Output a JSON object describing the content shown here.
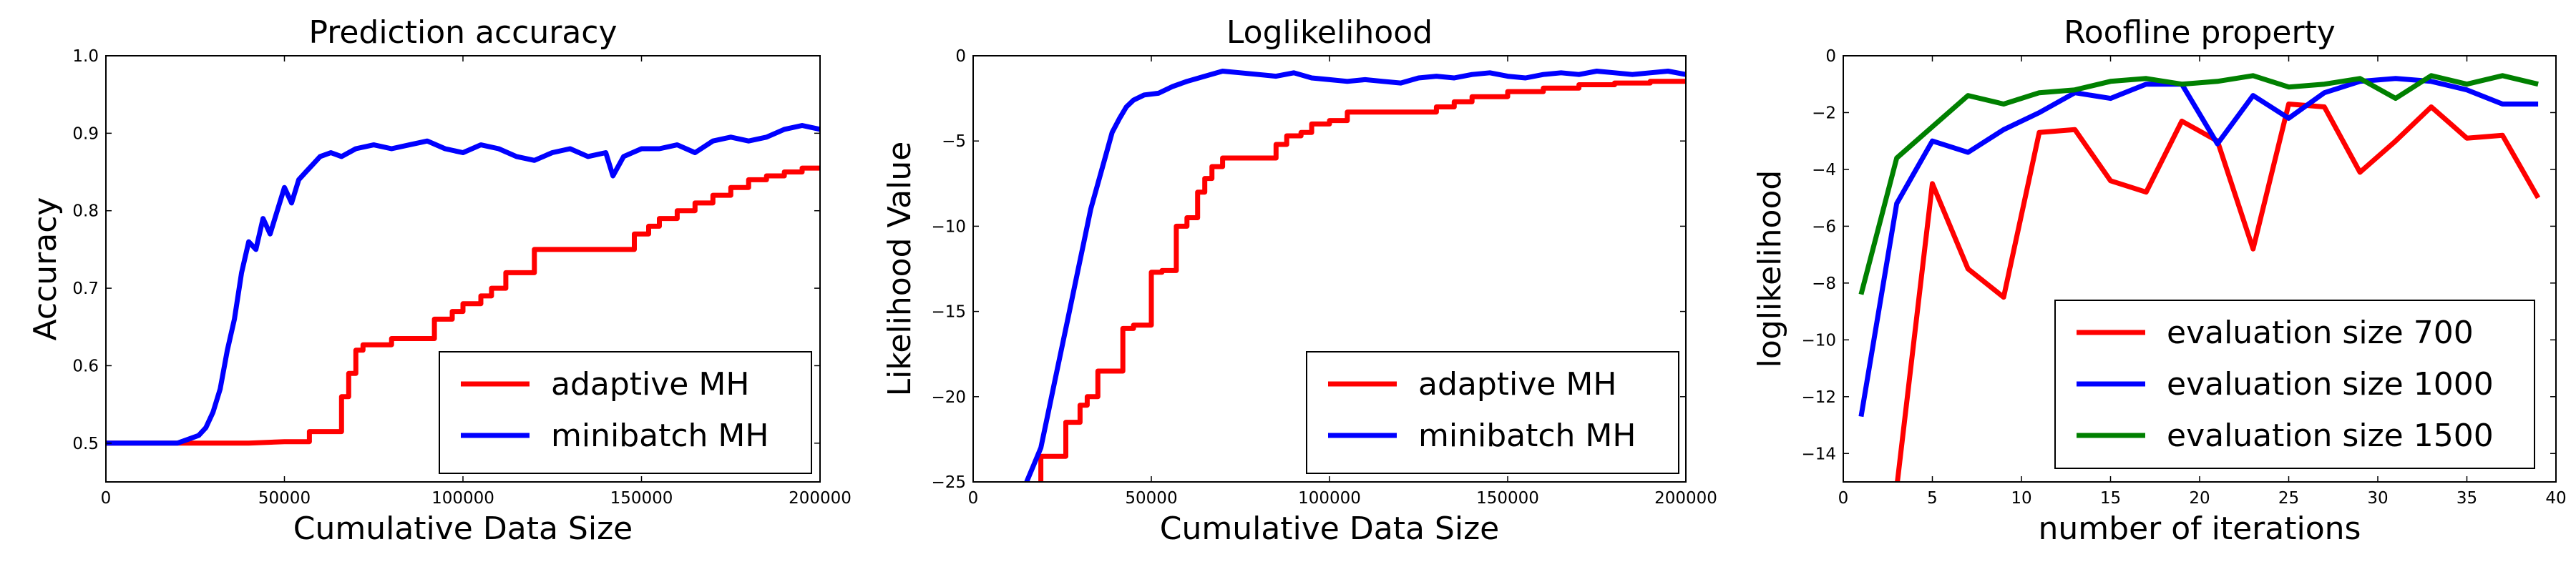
{
  "chart_data": [
    {
      "type": "line",
      "title": "Prediction accuracy",
      "xlabel": "Cumulative Data Size",
      "ylabel": "Accuracy",
      "xlim": [
        0,
        200000
      ],
      "ylim": [
        0.45,
        1.0
      ],
      "xticks": [
        0,
        50000,
        100000,
        150000,
        200000
      ],
      "xtick_labels": [
        "0",
        "50000",
        "100000",
        "150000",
        "200000"
      ],
      "yticks": [
        0.5,
        0.6,
        0.7,
        0.8,
        0.9,
        1.0
      ],
      "ytick_labels": [
        "0.5",
        "0.6",
        "0.7",
        "0.8",
        "0.9",
        "1.0"
      ],
      "legend_position": "lower-right",
      "series": [
        {
          "name": "adaptive MH",
          "color": "#ff0000",
          "x": [
            0,
            40000,
            50000,
            57000,
            57000,
            66000,
            66000,
            68000,
            68000,
            70000,
            70000,
            72000,
            72000,
            80000,
            80000,
            92000,
            92000,
            97000,
            97000,
            100000,
            100000,
            105000,
            105000,
            108000,
            108000,
            112000,
            112000,
            120000,
            120000,
            133000,
            133000,
            148000,
            148000,
            152000,
            152000,
            155000,
            155000,
            160000,
            160000,
            165000,
            165000,
            170000,
            170000,
            175000,
            175000,
            180000,
            180000,
            185000,
            185000,
            190000,
            190000,
            195000,
            195000,
            200000
          ],
          "y": [
            0.5,
            0.5,
            0.502,
            0.502,
            0.515,
            0.515,
            0.56,
            0.56,
            0.59,
            0.59,
            0.62,
            0.62,
            0.627,
            0.627,
            0.635,
            0.635,
            0.66,
            0.66,
            0.67,
            0.67,
            0.68,
            0.68,
            0.69,
            0.69,
            0.7,
            0.7,
            0.72,
            0.72,
            0.75,
            0.75,
            0.75,
            0.75,
            0.77,
            0.77,
            0.78,
            0.78,
            0.79,
            0.79,
            0.8,
            0.8,
            0.81,
            0.81,
            0.82,
            0.82,
            0.83,
            0.83,
            0.84,
            0.84,
            0.845,
            0.845,
            0.85,
            0.85,
            0.855,
            0.855
          ]
        },
        {
          "name": "minibatch MH",
          "color": "#0000ff",
          "x": [
            0,
            20000,
            23000,
            26000,
            28000,
            30000,
            32000,
            34000,
            36000,
            38000,
            40000,
            42000,
            44000,
            46000,
            48000,
            50000,
            52000,
            54000,
            56000,
            58000,
            60000,
            63000,
            66000,
            70000,
            75000,
            80000,
            85000,
            90000,
            95000,
            100000,
            105000,
            110000,
            115000,
            120000,
            125000,
            130000,
            135000,
            140000,
            142000,
            145000,
            150000,
            155000,
            160000,
            165000,
            170000,
            175000,
            180000,
            185000,
            190000,
            195000,
            200000
          ],
          "y": [
            0.5,
            0.5,
            0.505,
            0.51,
            0.52,
            0.54,
            0.57,
            0.62,
            0.66,
            0.72,
            0.76,
            0.75,
            0.79,
            0.77,
            0.8,
            0.83,
            0.81,
            0.84,
            0.85,
            0.86,
            0.87,
            0.875,
            0.87,
            0.88,
            0.885,
            0.88,
            0.885,
            0.89,
            0.88,
            0.875,
            0.885,
            0.88,
            0.87,
            0.865,
            0.875,
            0.88,
            0.87,
            0.875,
            0.845,
            0.87,
            0.88,
            0.88,
            0.885,
            0.875,
            0.89,
            0.895,
            0.89,
            0.895,
            0.905,
            0.91,
            0.905
          ]
        }
      ]
    },
    {
      "type": "line",
      "title": "Loglikelihood",
      "xlabel": "Cumulative Data Size",
      "ylabel": "Likelihood Value",
      "xlim": [
        0,
        200000
      ],
      "ylim": [
        -25,
        0
      ],
      "xticks": [
        0,
        50000,
        100000,
        150000,
        200000
      ],
      "xtick_labels": [
        "0",
        "50000",
        "100000",
        "150000",
        "200000"
      ],
      "yticks": [
        -25,
        -20,
        -15,
        -10,
        -5,
        0
      ],
      "ytick_labels": [
        "−25",
        "−20",
        "−15",
        "−10",
        "−5",
        "0"
      ],
      "legend_position": "lower-right",
      "series": [
        {
          "name": "adaptive MH",
          "color": "#ff0000",
          "x": [
            19000,
            19000,
            26000,
            26000,
            30000,
            30000,
            32000,
            32000,
            35000,
            35000,
            42000,
            42000,
            45000,
            45000,
            50000,
            50000,
            53000,
            53000,
            57000,
            57000,
            60000,
            60000,
            63000,
            63000,
            65000,
            65000,
            67000,
            67000,
            70000,
            70000,
            75000,
            75000,
            85000,
            85000,
            88000,
            88000,
            92000,
            92000,
            95000,
            95000,
            100000,
            100000,
            105000,
            105000,
            110000,
            110000,
            130000,
            130000,
            135000,
            135000,
            140000,
            140000,
            150000,
            150000,
            160000,
            160000,
            170000,
            170000,
            180000,
            180000,
            190000,
            190000,
            200000
          ],
          "y": [
            -25,
            -23.5,
            -23.5,
            -21.5,
            -21.5,
            -20.5,
            -20.5,
            -20,
            -20,
            -18.5,
            -18.5,
            -16,
            -16,
            -15.8,
            -15.8,
            -12.7,
            -12.7,
            -12.6,
            -12.6,
            -10,
            -10,
            -9.5,
            -9.5,
            -8,
            -8,
            -7.2,
            -7.2,
            -6.5,
            -6.5,
            -6,
            -6,
            -6,
            -6,
            -5.2,
            -5.2,
            -4.7,
            -4.7,
            -4.5,
            -4.5,
            -4,
            -4,
            -3.8,
            -3.8,
            -3.3,
            -3.3,
            -3.3,
            -3.3,
            -3,
            -3,
            -2.7,
            -2.7,
            -2.4,
            -2.4,
            -2.1,
            -2.1,
            -1.9,
            -1.9,
            -1.7,
            -1.7,
            -1.6,
            -1.6,
            -1.5,
            -1.5
          ]
        },
        {
          "name": "minibatch MH",
          "color": "#0000ff",
          "x": [
            15000,
            17000,
            19000,
            21000,
            23000,
            25000,
            27000,
            29000,
            31000,
            33000,
            35000,
            37000,
            39000,
            41000,
            43000,
            45000,
            48000,
            52000,
            56000,
            60000,
            65000,
            70000,
            75000,
            80000,
            85000,
            90000,
            95000,
            100000,
            105000,
            110000,
            115000,
            120000,
            125000,
            130000,
            135000,
            140000,
            145000,
            150000,
            155000,
            160000,
            165000,
            170000,
            175000,
            180000,
            185000,
            190000,
            195000,
            200000
          ],
          "y": [
            -25,
            -24,
            -23,
            -21,
            -19,
            -17,
            -15,
            -13,
            -11,
            -9,
            -7.5,
            -6,
            -4.5,
            -3.7,
            -3,
            -2.6,
            -2.3,
            -2.2,
            -1.8,
            -1.5,
            -1.2,
            -0.9,
            -1.0,
            -1.1,
            -1.2,
            -1.0,
            -1.3,
            -1.4,
            -1.5,
            -1.4,
            -1.5,
            -1.6,
            -1.3,
            -1.2,
            -1.3,
            -1.1,
            -1.0,
            -1.2,
            -1.3,
            -1.1,
            -1.0,
            -1.1,
            -0.9,
            -1.0,
            -1.1,
            -1.0,
            -0.9,
            -1.1
          ]
        }
      ]
    },
    {
      "type": "line",
      "title": "Roofline property",
      "xlabel": "number of iterations",
      "ylabel": "loglikelihood",
      "xlim": [
        0,
        40
      ],
      "ylim": [
        -15,
        0
      ],
      "xticks": [
        0,
        5,
        10,
        15,
        20,
        25,
        30,
        35,
        40
      ],
      "xtick_labels": [
        "0",
        "5",
        "10",
        "15",
        "20",
        "25",
        "30",
        "35",
        "40"
      ],
      "yticks": [
        -14,
        -12,
        -10,
        -8,
        -6,
        -4,
        -2,
        0
      ],
      "ytick_labels": [
        "−14",
        "−12",
        "−10",
        "−8",
        "−6",
        "−4",
        "−2",
        "0"
      ],
      "legend_position": "lower-right",
      "series": [
        {
          "name": "evaluation size 700",
          "color": "#ff0000",
          "x": [
            3,
            5,
            7,
            9,
            11,
            13,
            15,
            17,
            19,
            21,
            23,
            25,
            27,
            29,
            31,
            33,
            35,
            37,
            39
          ],
          "y": [
            -15.2,
            -4.5,
            -7.5,
            -8.5,
            -2.7,
            -2.6,
            -4.4,
            -4.8,
            -2.3,
            -3.0,
            -6.8,
            -1.7,
            -1.8,
            -4.1,
            -3.0,
            -1.8,
            -2.9,
            -2.8,
            -5.0
          ]
        },
        {
          "name": "evaluation size 1000",
          "color": "#0000ff",
          "x": [
            1,
            3,
            5,
            7,
            9,
            11,
            13,
            15,
            17,
            19,
            21,
            23,
            25,
            27,
            29,
            31,
            33,
            35,
            37,
            39
          ],
          "y": [
            -12.7,
            -5.2,
            -3.0,
            -3.4,
            -2.6,
            -2.0,
            -1.3,
            -1.5,
            -1.0,
            -1.0,
            -3.1,
            -1.4,
            -2.2,
            -1.3,
            -0.9,
            -0.8,
            -0.9,
            -1.2,
            -1.7,
            -1.7
          ]
        },
        {
          "name": "evaluation size 1500",
          "color": "#008000",
          "x": [
            1,
            3,
            5,
            7,
            9,
            11,
            13,
            15,
            17,
            19,
            21,
            23,
            25,
            27,
            29,
            31,
            33,
            35,
            37,
            39
          ],
          "y": [
            -8.4,
            -3.6,
            -2.5,
            -1.4,
            -1.7,
            -1.3,
            -1.2,
            -0.9,
            -0.8,
            -1.0,
            -0.9,
            -0.7,
            -1.1,
            -1.0,
            -0.8,
            -1.5,
            -0.7,
            -1.0,
            -0.7,
            -1.0
          ]
        }
      ]
    }
  ]
}
